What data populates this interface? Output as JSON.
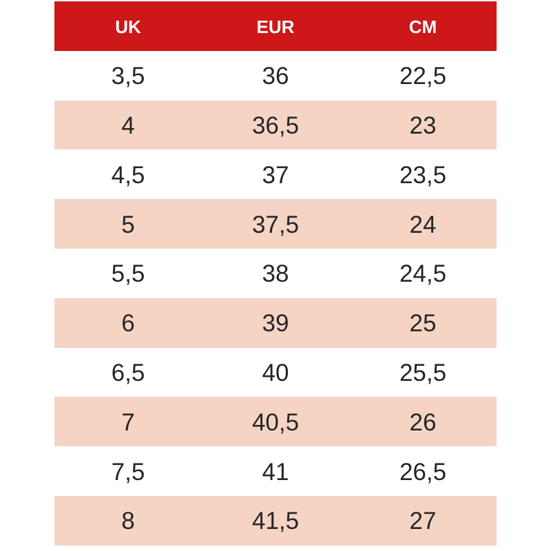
{
  "colors": {
    "header_bg": "#CD1719",
    "header_text": "#FFFFFF",
    "row_bg": "#FFFFFF",
    "row_alt_bg": "#F6D4C4",
    "cell_text": "#262626"
  },
  "chart_data": {
    "type": "table",
    "title": "",
    "columns": [
      "UK",
      "EUR",
      "CM"
    ],
    "rows": [
      [
        "3,5",
        "36",
        "22,5"
      ],
      [
        "4",
        "36,5",
        "23"
      ],
      [
        "4,5",
        "37",
        "23,5"
      ],
      [
        "5",
        "37,5",
        "24"
      ],
      [
        "5,5",
        "38",
        "24,5"
      ],
      [
        "6",
        "39",
        "25"
      ],
      [
        "6,5",
        "40",
        "25,5"
      ],
      [
        "7",
        "40,5",
        "26"
      ],
      [
        "7,5",
        "41",
        "26,5"
      ],
      [
        "8",
        "41,5",
        "27"
      ]
    ],
    "layout": {
      "striped": true,
      "first_data_row_background": "white",
      "alternate_row_background": "peach"
    }
  }
}
